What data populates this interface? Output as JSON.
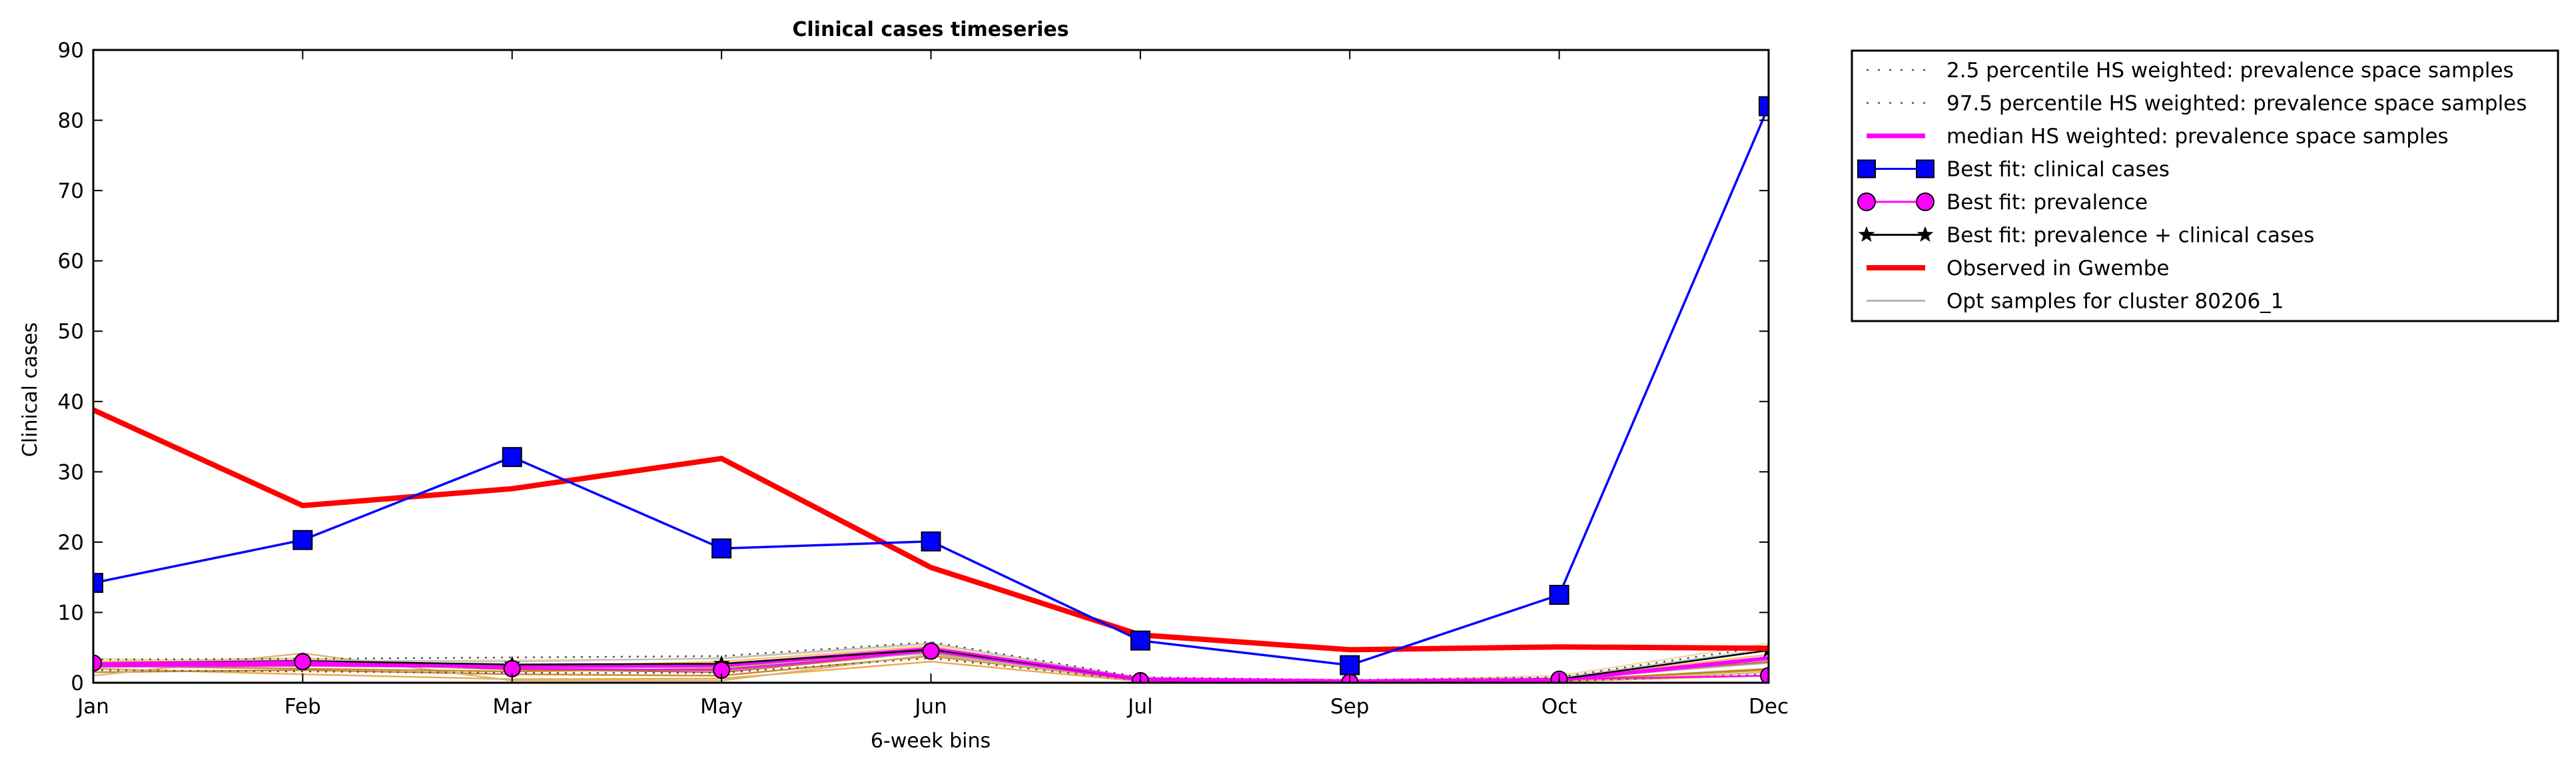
{
  "chart_data": {
    "type": "line",
    "title": "Clinical cases timeseries",
    "xlabel": "6-week bins",
    "ylabel": "Clinical cases",
    "categories": [
      "Jan",
      "Feb",
      "Mar",
      "May",
      "Jun",
      "Jul",
      "Sep",
      "Oct",
      "Dec"
    ],
    "ylim": [
      0,
      90
    ],
    "yticks": [
      0,
      10,
      20,
      30,
      40,
      50,
      60,
      70,
      80,
      90
    ],
    "grid": false,
    "legend_position": "outside-right",
    "series": [
      {
        "name": "2.5 percentile HS weighted: prevalence space samples",
        "style": "dotted",
        "color": "#555555",
        "values": [
          1.8,
          1.6,
          1.4,
          1.4,
          3.5,
          0.3,
          0.1,
          0.2,
          1.2
        ]
      },
      {
        "name": "97.5 percentile HS weighted: prevalence space samples",
        "style": "dotted",
        "color": "#555555",
        "values": [
          3.3,
          3.4,
          3.6,
          3.8,
          5.8,
          0.8,
          0.4,
          0.8,
          5.2
        ]
      },
      {
        "name": "median HS weighted: prevalence space samples",
        "style": "solid-thick",
        "color": "#ff00ff",
        "values": [
          2.5,
          2.6,
          2.4,
          2.5,
          4.8,
          0.5,
          0.2,
          0.4,
          3.5
        ]
      },
      {
        "name": "Best fit: clinical cases",
        "style": "line-square",
        "color": "#0000ff",
        "values": [
          14.2,
          20.3,
          32.1,
          19.1,
          20.1,
          6.0,
          2.5,
          12.5,
          82.0
        ]
      },
      {
        "name": "Best fit: prevalence",
        "style": "line-circle",
        "color": "#ff00ff",
        "values": [
          2.8,
          3.0,
          2.0,
          1.8,
          4.5,
          0.3,
          0.1,
          0.5,
          1.0
        ]
      },
      {
        "name": "Best fit: prevalence + clinical cases",
        "style": "line-star",
        "color": "#000000",
        "values": [
          2.8,
          3.1,
          2.6,
          2.7,
          4.7,
          0.3,
          0.1,
          0.5,
          4.6
        ]
      },
      {
        "name": "Observed in Gwembe",
        "style": "solid-red",
        "color": "#ff0000",
        "values": [
          38.8,
          25.2,
          27.6,
          31.9,
          16.4,
          6.8,
          4.7,
          5.1,
          4.9
        ]
      },
      {
        "name": "Opt samples for cluster 80206_1",
        "style": "thin",
        "color": "#aaaaaa",
        "values": [
          2.2,
          2.4,
          2.1,
          2.2,
          4.2,
          0.4,
          0.2,
          0.5,
          2.8
        ]
      }
    ],
    "opt_samples": [
      {
        "color": "#e8a33a",
        "values": [
          2.0,
          1.2,
          0.5,
          0.6,
          3.0,
          0.2,
          0.1,
          0.2,
          1.0
        ]
      },
      {
        "color": "#cc7a22",
        "values": [
          1.5,
          1.8,
          1.2,
          1.0,
          3.8,
          0.3,
          0.1,
          0.3,
          2.0
        ]
      },
      {
        "color": "#f2c060",
        "values": [
          3.0,
          3.5,
          2.2,
          3.0,
          5.2,
          0.5,
          0.3,
          0.6,
          4.0
        ]
      },
      {
        "color": "#a9651a",
        "values": [
          2.6,
          2.8,
          1.9,
          1.5,
          4.4,
          0.4,
          0.2,
          0.4,
          3.0
        ]
      },
      {
        "color": "#d9b070",
        "values": [
          1.0,
          4.2,
          0.3,
          0.3,
          4.0,
          0.2,
          0.1,
          0.2,
          1.5
        ]
      },
      {
        "color": "#b8860b",
        "values": [
          2.4,
          2.0,
          1.6,
          2.0,
          4.6,
          0.6,
          0.2,
          0.4,
          1.8
        ]
      },
      {
        "color": "#f0d8a0",
        "values": [
          3.4,
          3.0,
          3.2,
          3.4,
          5.5,
          0.7,
          0.3,
          1.0,
          5.6
        ]
      },
      {
        "color": "#c0c0c0",
        "values": [
          2.8,
          3.2,
          3.0,
          3.5,
          5.6,
          0.6,
          0.3,
          0.7,
          4.8
        ]
      }
    ]
  }
}
